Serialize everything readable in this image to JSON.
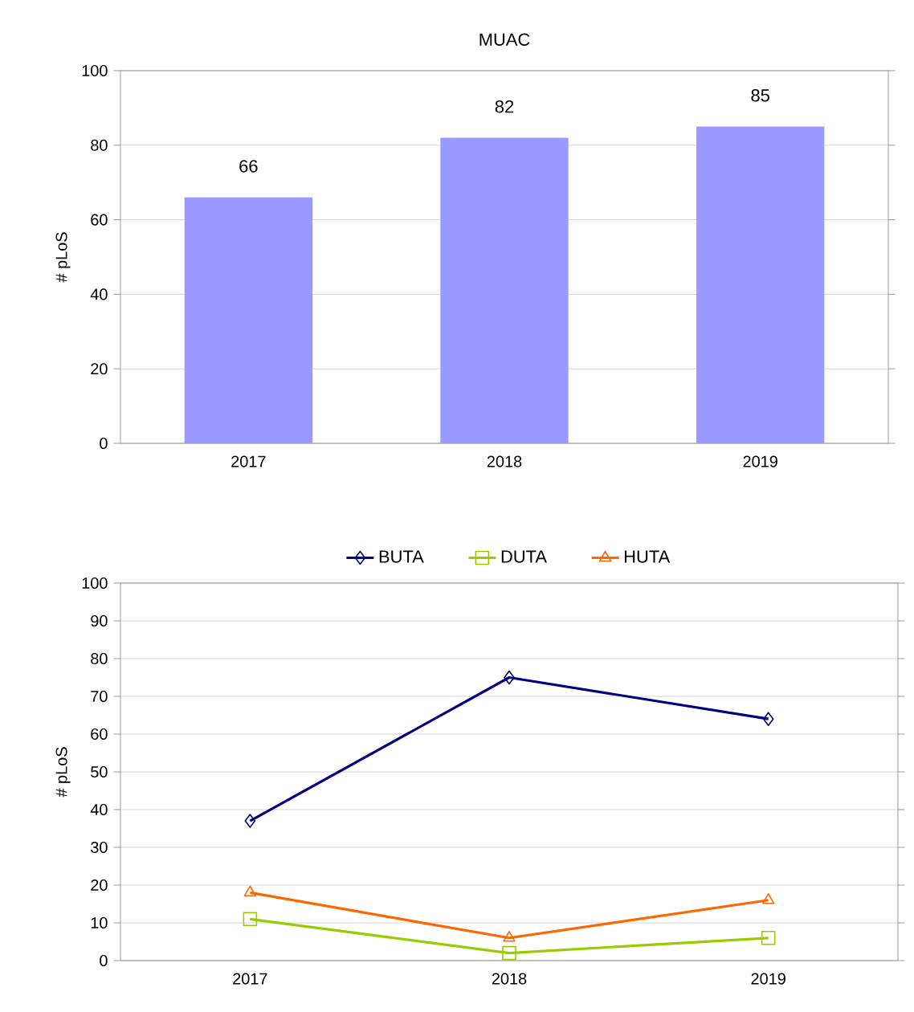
{
  "chart_data": [
    {
      "type": "bar",
      "title": "MUAC",
      "ylabel": "# pLoS",
      "categories": [
        "2017",
        "2018",
        "2019"
      ],
      "values": [
        66,
        82,
        85
      ],
      "color": "#9999ff",
      "ylim": [
        0,
        100
      ],
      "yticks": [
        0,
        20,
        40,
        60,
        80,
        100
      ],
      "grid": "y",
      "data_labels": true
    },
    {
      "type": "line",
      "ylabel": "# pLoS",
      "categories": [
        "2017",
        "2018",
        "2019"
      ],
      "ylim": [
        0,
        100
      ],
      "yticks": [
        0,
        10,
        20,
        30,
        40,
        50,
        60,
        70,
        80,
        90,
        100
      ],
      "grid": "y",
      "legend": "top",
      "series": [
        {
          "name": "BUTA",
          "color": "#000080",
          "marker": "diamond",
          "values": [
            37,
            75,
            64
          ]
        },
        {
          "name": "DUTA",
          "color": "#99cc00",
          "marker": "square",
          "values": [
            11,
            2,
            6
          ]
        },
        {
          "name": "HUTA",
          "color": "#ff6600",
          "marker": "triangle",
          "values": [
            18,
            6,
            16
          ]
        }
      ]
    }
  ]
}
